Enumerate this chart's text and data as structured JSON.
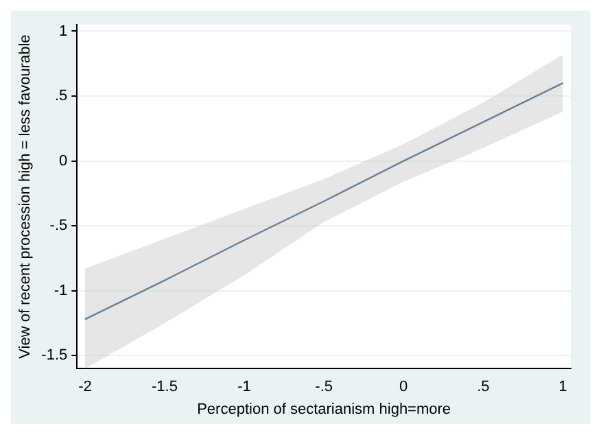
{
  "chart_data": {
    "type": "line",
    "xlabel": "Perception of sectarianism high=more",
    "ylabel": "View of recent procession high = less favourable",
    "x": [
      -2,
      -1.5,
      -1,
      -0.5,
      0,
      0.5,
      1
    ],
    "series": [
      {
        "color": "#1a476f",
        "values": [
          -1.22,
          -0.92,
          -0.61,
          -0.31,
          0,
          0.3,
          0.6
        ],
        "lower": [
          -1.6,
          -1.25,
          -0.88,
          -0.47,
          -0.16,
          0.1,
          0.38
        ],
        "upper": [
          -0.83,
          -0.6,
          -0.37,
          -0.14,
          0.13,
          0.45,
          0.82
        ]
      }
    ],
    "xlim": [
      -2.05,
      1.05
    ],
    "xticks": [
      -2,
      -1.5,
      -1,
      {
        "value": -0.5,
        "label": "-.5"
      },
      0,
      {
        "value": 0.5,
        "label": ".5"
      },
      1
    ],
    "ylim": [
      -1.6,
      1.05
    ],
    "yticks": [
      -1.5,
      -1,
      {
        "value": -0.5,
        "label": "-.5"
      },
      0,
      {
        "value": 0.5,
        "label": ".5"
      },
      1
    ],
    "grid": "y",
    "legend": false,
    "marker": "none",
    "line_style": "solid"
  }
}
